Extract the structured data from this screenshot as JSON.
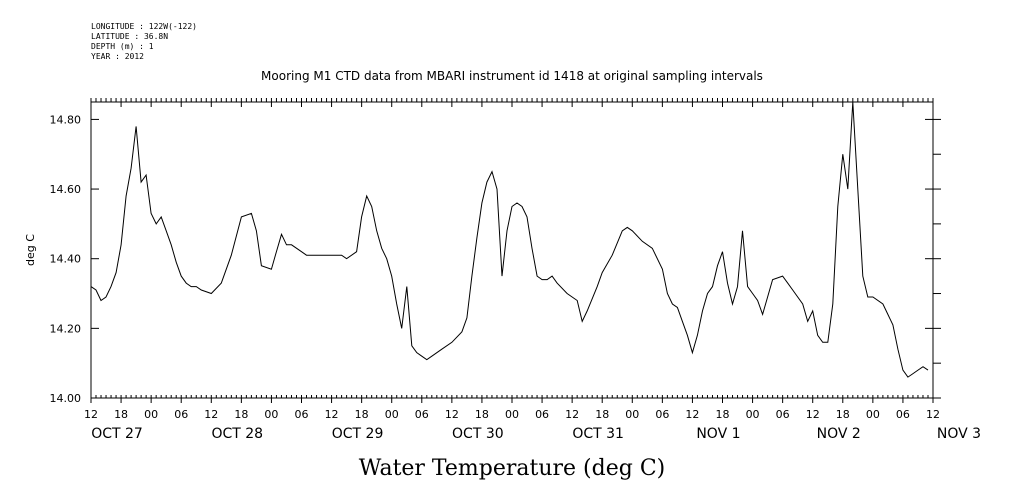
{
  "meta": {
    "longitude": "LONGITUDE : 122W(-122)",
    "latitude": "LATITUDE : 36.8N",
    "depth": "DEPTH (m) : 1",
    "year": "YEAR : 2012"
  },
  "chart_data": {
    "type": "line",
    "title": "Mooring M1 CTD data from MBARI instrument id 1418 at original sampling intervals",
    "xlabel": "Water Temperature (deg C)",
    "ylabel": "deg C",
    "xlim": [
      "2012-10-27 12:00",
      "2012-11-03 12:00"
    ],
    "ylim": [
      14.0,
      14.85
    ],
    "yticks": [
      "14.00",
      "14.20",
      "14.40",
      "14.60",
      "14.80"
    ],
    "xtick_hours": [
      "12",
      "18",
      "00",
      "06",
      "12",
      "18",
      "00",
      "06",
      "12",
      "18",
      "00",
      "06",
      "12",
      "18",
      "00",
      "06",
      "12",
      "18",
      "00",
      "06",
      "12",
      "18",
      "00",
      "06",
      "12",
      "18",
      "00",
      "06",
      "12"
    ],
    "date_labels": [
      "OCT 27",
      "OCT 28",
      "OCT 29",
      "OCT 30",
      "OCT 31",
      "NOV 1",
      "NOV 2",
      "NOV 3"
    ],
    "grid": false,
    "series": [
      {
        "color": "#000000",
        "x": [
          "2012-10-27 12:00",
          "2012-10-27 13:00",
          "2012-10-27 14:00",
          "2012-10-27 15:00",
          "2012-10-27 16:00",
          "2012-10-27 17:00",
          "2012-10-27 18:00",
          "2012-10-27 19:00",
          "2012-10-27 20:00",
          "2012-10-27 21:00",
          "2012-10-27 22:00",
          "2012-10-27 23:00",
          "2012-10-28 00:00",
          "2012-10-28 01:00",
          "2012-10-28 02:00",
          "2012-10-28 03:00",
          "2012-10-28 04:00",
          "2012-10-28 05:00",
          "2012-10-28 06:00",
          "2012-10-28 07:00",
          "2012-10-28 08:00",
          "2012-10-28 09:00",
          "2012-10-28 10:00",
          "2012-10-28 12:00",
          "2012-10-28 14:00",
          "2012-10-28 16:00",
          "2012-10-28 18:00",
          "2012-10-28 20:00",
          "2012-10-28 21:00",
          "2012-10-28 22:00",
          "2012-10-29 00:00",
          "2012-10-29 01:00",
          "2012-10-29 02:00",
          "2012-10-29 03:00",
          "2012-10-29 04:00",
          "2012-10-29 06:00",
          "2012-10-29 07:00",
          "2012-10-29 09:00",
          "2012-10-29 11:00",
          "2012-10-29 12:00",
          "2012-10-29 14:00",
          "2012-10-29 15:00",
          "2012-10-29 17:00",
          "2012-10-29 18:00",
          "2012-10-29 19:00",
          "2012-10-29 20:00",
          "2012-10-29 21:00",
          "2012-10-29 22:00",
          "2012-10-29 23:00",
          "2012-10-30 00:00",
          "2012-10-30 01:00",
          "2012-10-30 02:00",
          "2012-10-30 03:00",
          "2012-10-30 04:00",
          "2012-10-30 05:00",
          "2012-10-30 06:00",
          "2012-10-30 07:00",
          "2012-10-30 08:00",
          "2012-10-30 10:00",
          "2012-10-30 12:00",
          "2012-10-30 14:00",
          "2012-10-30 15:00",
          "2012-10-30 16:00",
          "2012-10-30 17:00",
          "2012-10-30 18:00",
          "2012-10-30 19:00",
          "2012-10-30 20:00",
          "2012-10-30 21:00",
          "2012-10-30 22:00",
          "2012-10-30 23:00",
          "2012-10-31 00:00",
          "2012-10-31 01:00",
          "2012-10-31 02:00",
          "2012-10-31 03:00",
          "2012-10-31 04:00",
          "2012-10-31 05:00",
          "2012-10-31 06:00",
          "2012-10-31 07:00",
          "2012-10-31 08:00",
          "2012-10-31 09:00",
          "2012-10-31 11:00",
          "2012-10-31 13:00",
          "2012-10-31 14:00",
          "2012-10-31 15:00",
          "2012-10-31 17:00",
          "2012-10-31 18:00",
          "2012-10-31 20:00",
          "2012-10-31 22:00",
          "2012-10-31 23:00",
          "2012-11-01 00:00",
          "2012-11-01 02:00",
          "2012-11-01 04:00",
          "2012-11-01 06:00",
          "2012-11-01 07:00",
          "2012-11-01 08:00",
          "2012-11-01 09:00",
          "2012-11-01 10:00",
          "2012-11-01 11:00",
          "2012-11-01 12:00",
          "2012-11-01 13:00",
          "2012-11-01 14:00",
          "2012-11-01 15:00",
          "2012-11-01 16:00",
          "2012-11-01 17:00",
          "2012-11-01 18:00",
          "2012-11-01 19:00",
          "2012-11-01 20:00",
          "2012-11-01 21:00",
          "2012-11-01 22:00",
          "2012-11-01 23:00",
          "2012-11-02 00:00",
          "2012-11-02 01:00",
          "2012-11-02 02:00",
          "2012-11-02 04:00",
          "2012-11-02 06:00",
          "2012-11-02 07:00",
          "2012-11-02 08:00",
          "2012-11-02 10:00",
          "2012-11-02 11:00",
          "2012-11-02 12:00",
          "2012-11-02 13:00",
          "2012-11-02 14:00",
          "2012-11-02 15:00",
          "2012-11-02 16:00",
          "2012-11-02 17:00",
          "2012-11-02 18:00",
          "2012-11-02 19:00",
          "2012-11-02 20:00",
          "2012-11-02 21:00",
          "2012-11-02 22:00",
          "2012-11-02 23:00",
          "2012-11-03 00:00",
          "2012-11-03 02:00",
          "2012-11-03 04:00",
          "2012-11-03 05:00",
          "2012-11-03 06:00",
          "2012-11-03 07:00",
          "2012-11-03 08:00",
          "2012-11-03 09:00",
          "2012-11-03 10:00",
          "2012-11-03 11:00"
        ],
        "y": [
          14.32,
          14.31,
          14.28,
          14.29,
          14.32,
          14.36,
          14.44,
          14.58,
          14.66,
          14.78,
          14.62,
          14.64,
          14.53,
          14.5,
          14.52,
          14.48,
          14.44,
          14.39,
          14.35,
          14.33,
          14.32,
          14.32,
          14.31,
          14.3,
          14.33,
          14.41,
          14.52,
          14.53,
          14.48,
          14.38,
          14.37,
          14.42,
          14.47,
          14.44,
          14.44,
          14.42,
          14.41,
          14.41,
          14.41,
          14.41,
          14.41,
          14.4,
          14.42,
          14.52,
          14.58,
          14.55,
          14.48,
          14.43,
          14.4,
          14.35,
          14.27,
          14.2,
          14.32,
          14.15,
          14.13,
          14.12,
          14.11,
          14.12,
          14.14,
          14.16,
          14.19,
          14.23,
          14.35,
          14.46,
          14.56,
          14.62,
          14.65,
          14.6,
          14.35,
          14.48,
          14.55,
          14.56,
          14.55,
          14.52,
          14.43,
          14.35,
          14.34,
          14.34,
          14.35,
          14.33,
          14.3,
          14.28,
          14.22,
          14.25,
          14.32,
          14.36,
          14.41,
          14.48,
          14.49,
          14.48,
          14.45,
          14.43,
          14.37,
          14.3,
          14.27,
          14.26,
          14.22,
          14.18,
          14.13,
          14.18,
          14.25,
          14.3,
          14.32,
          14.38,
          14.42,
          14.33,
          14.27,
          14.32,
          14.48,
          14.32,
          14.3,
          14.28,
          14.24,
          14.34,
          14.35,
          14.33,
          14.31,
          14.27,
          14.22,
          14.25,
          14.18,
          14.16,
          14.16,
          14.27,
          14.55,
          14.7,
          14.6,
          14.85,
          14.6,
          14.35,
          14.29,
          14.29,
          14.27,
          14.21,
          14.14,
          14.08,
          14.06,
          14.07,
          14.08,
          14.09,
          14.08
        ]
      }
    ]
  }
}
